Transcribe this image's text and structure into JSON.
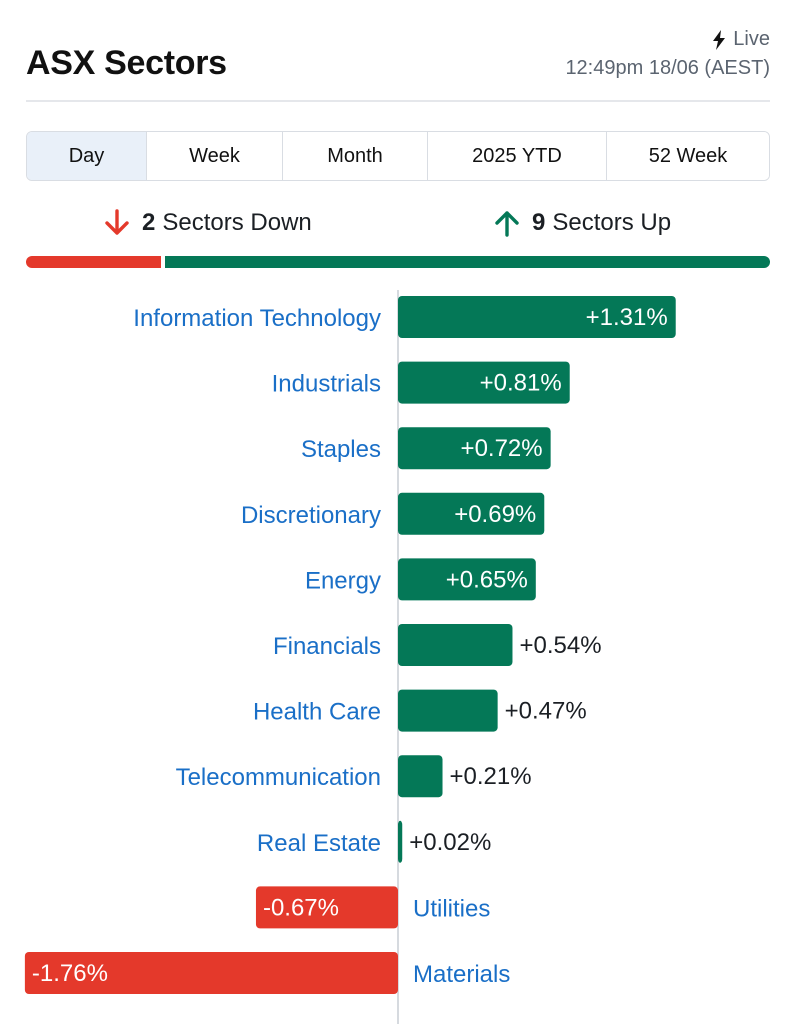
{
  "header": {
    "title": "ASX Sectors",
    "live_label": "Live",
    "timestamp": "12:49pm 18/06 (AEST)"
  },
  "tabs": [
    {
      "label": "Day",
      "active": true
    },
    {
      "label": "Week",
      "active": false
    },
    {
      "label": "Month",
      "active": false
    },
    {
      "label": "2025 YTD",
      "active": false
    },
    {
      "label": "52 Week",
      "active": false
    }
  ],
  "summary": {
    "down_count": "2",
    "down_label": "Sectors Down",
    "up_count": "9",
    "up_label": "Sectors Up"
  },
  "colors": {
    "positive": "#047857",
    "negative": "#e4392b",
    "label": "#1a6fc7"
  },
  "chart_data": {
    "type": "bar",
    "orientation": "horizontal",
    "categories": [
      "Information Technology",
      "Industrials",
      "Staples",
      "Discretionary",
      "Energy",
      "Financials",
      "Health Care",
      "Telecommunication",
      "Real Estate",
      "Utilities",
      "Materials"
    ],
    "values": [
      1.31,
      0.81,
      0.72,
      0.69,
      0.65,
      0.54,
      0.47,
      0.21,
      0.02,
      -0.67,
      -1.76
    ],
    "value_labels": [
      "+1.31%",
      "+0.81%",
      "+0.72%",
      "+0.69%",
      "+0.65%",
      "+0.54%",
      "+0.47%",
      "+0.21%",
      "+0.02%",
      "-0.67%",
      "-1.76%"
    ],
    "unit": "%"
  }
}
